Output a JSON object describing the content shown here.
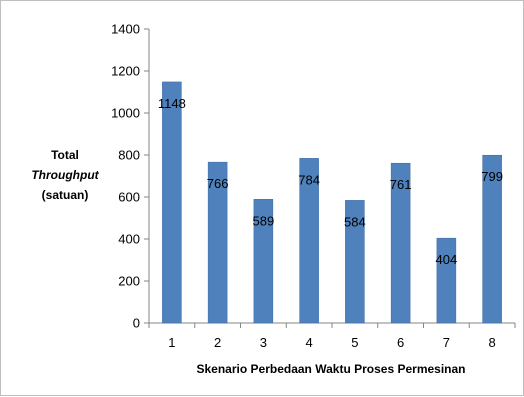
{
  "chart_data": {
    "type": "bar",
    "categories": [
      "1",
      "2",
      "3",
      "4",
      "5",
      "6",
      "7",
      "8"
    ],
    "values": [
      1148,
      766,
      589,
      784,
      584,
      761,
      404,
      799
    ],
    "data_labels": [
      "1148",
      "766",
      "589",
      "784",
      "584",
      "761",
      "404",
      "799"
    ],
    "ylim": [
      0,
      1400
    ],
    "yticks": [
      "0",
      "200",
      "400",
      "600",
      "800",
      "1000",
      "1200",
      "1400"
    ],
    "ylabel_lines": [
      "Total",
      "Throughput",
      "(satuan)"
    ],
    "xlabel": "Skenario Perbedaan Waktu Proses Permesinan",
    "grid": false,
    "legend": "none",
    "colors": {
      "bar": "#4f81bd",
      "bar_edge": "#3b6aa3",
      "axis": "#868686"
    }
  }
}
